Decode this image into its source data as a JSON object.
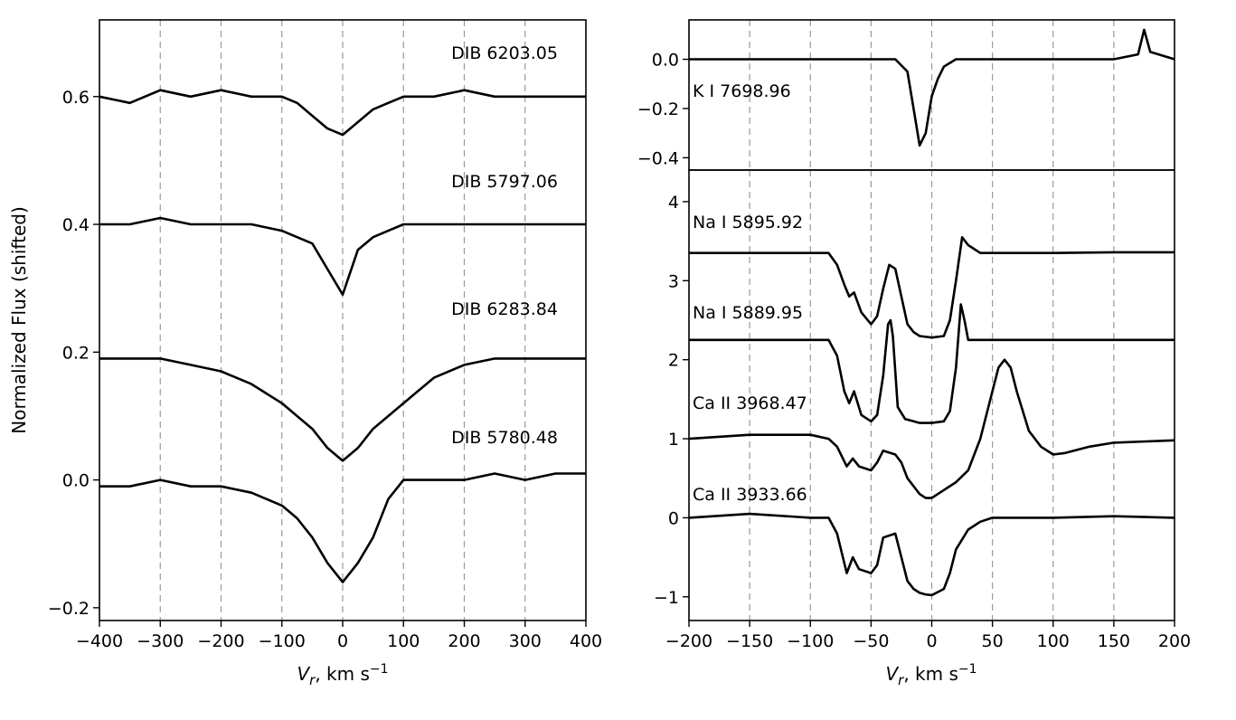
{
  "chart_data": [
    {
      "type": "line",
      "panel": "left",
      "xlabel": "V_r, km s^-1",
      "ylabel": "Normalized Flux (shifted)",
      "xlim": [
        -400,
        400
      ],
      "ylim": [
        -0.22,
        0.72
      ],
      "xticks": [
        -400,
        -300,
        -200,
        -100,
        0,
        100,
        200,
        300,
        400
      ],
      "xtick_labels": [
        "−400",
        "−300",
        "−200",
        "−100",
        "0",
        "100",
        "200",
        "300",
        "400"
      ],
      "yticks": [
        -0.2,
        0.0,
        0.2,
        0.4,
        0.6
      ],
      "ytick_labels": [
        "−0.2",
        "0.0",
        "0.2",
        "0.4",
        "0.6"
      ],
      "grid": "vertical dashed",
      "series": [
        {
          "name": "DIB 6203.05",
          "x": [
            -400,
            -350,
            -300,
            -250,
            -200,
            -150,
            -100,
            -75,
            -50,
            -25,
            0,
            25,
            50,
            75,
            100,
            150,
            200,
            250,
            300,
            350,
            400
          ],
          "values": [
            0.6,
            0.59,
            0.61,
            0.6,
            0.61,
            0.6,
            0.6,
            0.59,
            0.57,
            0.55,
            0.54,
            0.56,
            0.58,
            0.59,
            0.6,
            0.6,
            0.61,
            0.6,
            0.6,
            0.6,
            0.6
          ]
        },
        {
          "name": "DIB 5797.06",
          "x": [
            -400,
            -350,
            -300,
            -250,
            -200,
            -150,
            -100,
            -75,
            -50,
            -25,
            0,
            25,
            50,
            75,
            100,
            150,
            200,
            250,
            300,
            350,
            400
          ],
          "values": [
            0.4,
            0.4,
            0.41,
            0.4,
            0.4,
            0.4,
            0.39,
            0.38,
            0.37,
            0.33,
            0.29,
            0.36,
            0.38,
            0.39,
            0.4,
            0.4,
            0.4,
            0.4,
            0.4,
            0.4,
            0.4
          ]
        },
        {
          "name": "DIB 6283.84",
          "x": [
            -400,
            -350,
            -300,
            -250,
            -200,
            -150,
            -100,
            -75,
            -50,
            -25,
            0,
            25,
            50,
            75,
            100,
            150,
            200,
            250,
            300,
            350,
            400
          ],
          "values": [
            0.19,
            0.19,
            0.19,
            0.18,
            0.17,
            0.15,
            0.12,
            0.1,
            0.08,
            0.05,
            0.03,
            0.05,
            0.08,
            0.1,
            0.12,
            0.16,
            0.18,
            0.19,
            0.19,
            0.19,
            0.19
          ]
        },
        {
          "name": "DIB 5780.48",
          "x": [
            -400,
            -350,
            -300,
            -250,
            -200,
            -150,
            -100,
            -75,
            -50,
            -25,
            0,
            25,
            50,
            75,
            100,
            150,
            200,
            250,
            300,
            350,
            400
          ],
          "values": [
            -0.01,
            -0.01,
            0.0,
            -0.01,
            -0.01,
            -0.02,
            -0.04,
            -0.06,
            -0.09,
            -0.13,
            -0.16,
            -0.13,
            -0.09,
            -0.03,
            0.0,
            0.0,
            0.0,
            0.01,
            0.0,
            0.01,
            0.01
          ]
        }
      ],
      "annotations": [
        "DIB 6203.05",
        "DIB 5797.06",
        "DIB 6283.84",
        "DIB 5780.48"
      ]
    },
    {
      "type": "line",
      "panel": "right-top",
      "xlim": [
        -200,
        200
      ],
      "ylim": [
        -0.45,
        0.16
      ],
      "yticks": [
        -0.4,
        -0.2,
        0.0
      ],
      "ytick_labels": [
        "−0.4",
        "−0.2",
        "0.0"
      ],
      "grid": "vertical dashed",
      "series": [
        {
          "name": "K I 7698.96",
          "x": [
            -200,
            -150,
            -100,
            -50,
            -30,
            -20,
            -15,
            -10,
            -5,
            0,
            5,
            10,
            20,
            50,
            100,
            150,
            170,
            175,
            180,
            200
          ],
          "values": [
            0.0,
            0.0,
            0.0,
            0.0,
            0.0,
            -0.05,
            -0.2,
            -0.35,
            -0.3,
            -0.15,
            -0.08,
            -0.03,
            0.0,
            0.0,
            0.0,
            0.0,
            0.02,
            0.12,
            0.03,
            0.0
          ]
        }
      ],
      "annotations": [
        "K I 7698.96"
      ]
    },
    {
      "type": "line",
      "panel": "right-bottom",
      "xlabel": "V_r, km s^-1",
      "xlim": [
        -200,
        200
      ],
      "ylim": [
        -1.3,
        4.4
      ],
      "xticks": [
        -200,
        -150,
        -100,
        -50,
        0,
        50,
        100,
        150,
        200
      ],
      "xtick_labels": [
        "−200",
        "−150",
        "−100",
        "−50",
        "0",
        "50",
        "100",
        "150",
        "200"
      ],
      "yticks": [
        -1,
        0,
        1,
        2,
        3,
        4
      ],
      "ytick_labels": [
        "−1",
        "0",
        "1",
        "2",
        "3",
        "4"
      ],
      "grid": "vertical dashed",
      "series": [
        {
          "name": "Na I 5895.92",
          "x": [
            -200,
            -150,
            -100,
            -85,
            -78,
            -72,
            -68,
            -64,
            -58,
            -50,
            -45,
            -40,
            -35,
            -30,
            -25,
            -20,
            -15,
            -10,
            0,
            10,
            15,
            20,
            25,
            30,
            40,
            60,
            100,
            150,
            200
          ],
          "values": [
            3.35,
            3.35,
            3.35,
            3.35,
            3.2,
            2.95,
            2.8,
            2.85,
            2.6,
            2.45,
            2.55,
            2.9,
            3.2,
            3.15,
            2.8,
            2.45,
            2.35,
            2.3,
            2.28,
            2.3,
            2.5,
            3.0,
            3.55,
            3.45,
            3.35,
            3.35,
            3.35,
            3.36,
            3.36
          ]
        },
        {
          "name": "Na I 5889.95",
          "x": [
            -200,
            -150,
            -100,
            -85,
            -78,
            -72,
            -68,
            -64,
            -58,
            -50,
            -45,
            -40,
            -36,
            -34,
            -32,
            -28,
            -22,
            -15,
            -10,
            0,
            10,
            15,
            20,
            24,
            27,
            30,
            40,
            60,
            100,
            150,
            200
          ],
          "values": [
            2.25,
            2.25,
            2.25,
            2.25,
            2.05,
            1.6,
            1.45,
            1.6,
            1.3,
            1.22,
            1.3,
            1.8,
            2.45,
            2.5,
            2.3,
            1.4,
            1.25,
            1.22,
            1.2,
            1.2,
            1.22,
            1.35,
            1.9,
            2.7,
            2.5,
            2.25,
            2.25,
            2.25,
            2.25,
            2.25,
            2.25
          ]
        },
        {
          "name": "Ca II 3968.47",
          "x": [
            -200,
            -150,
            -100,
            -85,
            -78,
            -70,
            -65,
            -60,
            -50,
            -45,
            -40,
            -30,
            -25,
            -20,
            -15,
            -10,
            -5,
            0,
            10,
            20,
            30,
            40,
            50,
            55,
            60,
            65,
            70,
            80,
            90,
            100,
            110,
            130,
            150,
            200
          ],
          "values": [
            1.0,
            1.05,
            1.05,
            1.0,
            0.9,
            0.65,
            0.75,
            0.65,
            0.6,
            0.7,
            0.85,
            0.8,
            0.7,
            0.5,
            0.4,
            0.3,
            0.25,
            0.25,
            0.35,
            0.45,
            0.6,
            1.0,
            1.6,
            1.9,
            2.0,
            1.9,
            1.6,
            1.1,
            0.9,
            0.8,
            0.82,
            0.9,
            0.95,
            0.98
          ]
        },
        {
          "name": "Ca II 3933.66",
          "x": [
            -200,
            -150,
            -100,
            -85,
            -78,
            -70,
            -65,
            -60,
            -50,
            -45,
            -40,
            -30,
            -25,
            -20,
            -15,
            -10,
            -5,
            0,
            10,
            15,
            20,
            30,
            40,
            50,
            100,
            150,
            200
          ],
          "values": [
            0.0,
            0.05,
            0.0,
            0.0,
            -0.2,
            -0.7,
            -0.5,
            -0.65,
            -0.7,
            -0.6,
            -0.25,
            -0.2,
            -0.5,
            -0.8,
            -0.9,
            -0.95,
            -0.97,
            -0.98,
            -0.9,
            -0.7,
            -0.4,
            -0.15,
            -0.05,
            0.0,
            0.0,
            0.02,
            0.0
          ]
        }
      ],
      "annotations": [
        "Na I 5895.92",
        "Na I 5889.95",
        "Ca II 3968.47",
        "Ca II 3933.66"
      ]
    }
  ]
}
